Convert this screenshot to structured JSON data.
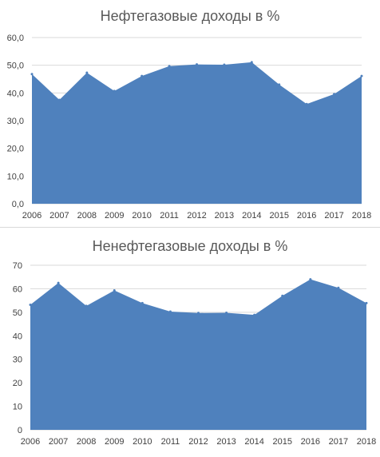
{
  "chart_data": [
    {
      "type": "area",
      "title": "Нефтегазовые доходы в %",
      "x": [
        "2006",
        "2007",
        "2008",
        "2009",
        "2010",
        "2011",
        "2012",
        "2013",
        "2014",
        "2015",
        "2016",
        "2017",
        "2018"
      ],
      "series": [
        {
          "values": [
            46.8,
            37.5,
            47.3,
            40.7,
            46.1,
            49.7,
            50.3,
            50.2,
            51.1,
            43.0,
            36.0,
            39.6,
            46.1
          ]
        }
      ],
      "ylim": [
        0,
        60
      ],
      "yticks": [
        "0,0",
        "10,0",
        "20,0",
        "30,0",
        "40,0",
        "50,0",
        "60,0"
      ],
      "color": "#4f81bd",
      "grid": true
    },
    {
      "type": "area",
      "title": "Ненефтегазовые доходы в %",
      "x": [
        "2006",
        "2007",
        "2008",
        "2009",
        "2010",
        "2011",
        "2012",
        "2013",
        "2014",
        "2015",
        "2016",
        "2017",
        "2018"
      ],
      "series": [
        {
          "values": [
            53.2,
            62.5,
            52.7,
            59.3,
            53.9,
            50.3,
            49.7,
            49.8,
            48.9,
            57.0,
            64.0,
            60.4,
            53.9
          ]
        }
      ],
      "ylim": [
        0,
        70
      ],
      "yticks": [
        "0",
        "10",
        "20",
        "30",
        "40",
        "50",
        "60",
        "70"
      ],
      "color": "#4f81bd",
      "grid": true
    }
  ]
}
